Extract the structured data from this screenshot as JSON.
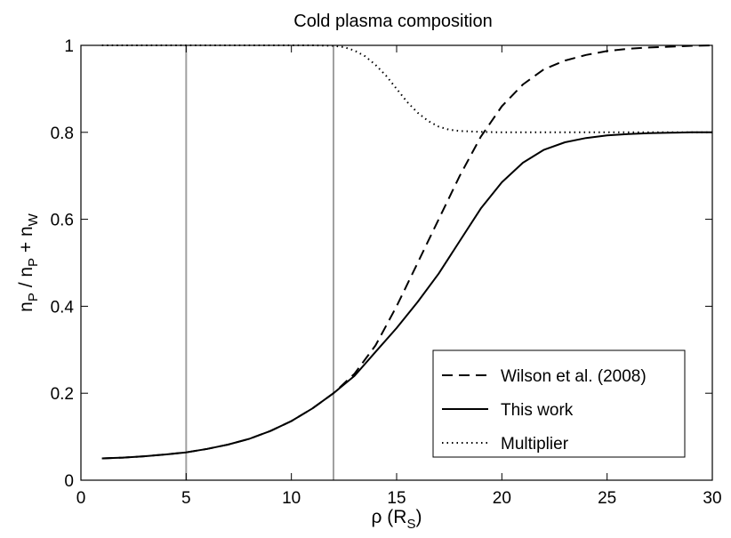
{
  "chart_data": {
    "type": "line",
    "title": "Cold plasma composition",
    "xlabel": {
      "main": "ρ (R",
      "sub": "S",
      "close": ")"
    },
    "ylabel": {
      "parts": [
        {
          "t": "n",
          "sub": false
        },
        {
          "t": "P",
          "sub": true
        },
        {
          "t": " / n",
          "sub": false
        },
        {
          "t": "P",
          "sub": true
        },
        {
          "t": " + n",
          "sub": false
        },
        {
          "t": "W",
          "sub": true
        }
      ]
    },
    "xlim": [
      0,
      30
    ],
    "ylim": [
      0,
      1
    ],
    "xticks": [
      0,
      5,
      10,
      15,
      20,
      25,
      30
    ],
    "yticks": [
      0,
      0.2,
      0.4,
      0.6,
      0.8,
      1
    ],
    "ytick_labels": [
      "0",
      "0.2",
      "0.4",
      "0.6",
      "0.8",
      "1"
    ],
    "grid": false,
    "legend_position": "bottom-right",
    "vertical_lines": [
      {
        "x": 5,
        "color": "#a0a0a0"
      },
      {
        "x": 12,
        "color": "#a0a0a0"
      }
    ],
    "series": [
      {
        "name": "Wilson et al. (2008)",
        "style": "dashed",
        "color": "#000000",
        "x": [
          1,
          2,
          3,
          4,
          5,
          6,
          7,
          8,
          9,
          10,
          11,
          12,
          13,
          14,
          15,
          16,
          17,
          18,
          19,
          20,
          21,
          22,
          23,
          24,
          25,
          26,
          27,
          28,
          29,
          30
        ],
        "y": [
          0.05,
          0.052,
          0.055,
          0.059,
          0.064,
          0.072,
          0.082,
          0.095,
          0.113,
          0.136,
          0.165,
          0.2,
          0.245,
          0.31,
          0.4,
          0.5,
          0.6,
          0.7,
          0.79,
          0.86,
          0.91,
          0.945,
          0.965,
          0.978,
          0.987,
          0.992,
          0.995,
          0.997,
          0.999,
          1.0
        ]
      },
      {
        "name": "This work",
        "style": "solid",
        "color": "#000000",
        "x": [
          1,
          2,
          3,
          4,
          5,
          6,
          7,
          8,
          9,
          10,
          11,
          12,
          13,
          14,
          15,
          16,
          17,
          18,
          19,
          20,
          21,
          22,
          23,
          24,
          25,
          26,
          27,
          28,
          29,
          30
        ],
        "y": [
          0.05,
          0.052,
          0.055,
          0.059,
          0.064,
          0.072,
          0.082,
          0.095,
          0.113,
          0.136,
          0.165,
          0.2,
          0.24,
          0.295,
          0.35,
          0.41,
          0.475,
          0.55,
          0.625,
          0.685,
          0.73,
          0.76,
          0.777,
          0.787,
          0.793,
          0.796,
          0.798,
          0.799,
          0.8,
          0.8
        ]
      },
      {
        "name": "Multiplier",
        "style": "dotted",
        "color": "#000000",
        "x": [
          1,
          2,
          3,
          4,
          5,
          6,
          7,
          8,
          9,
          10,
          11,
          12,
          12.5,
          13,
          13.5,
          14,
          14.5,
          15,
          15.5,
          16,
          16.5,
          17,
          17.5,
          18,
          19,
          20,
          22,
          25,
          30
        ],
        "y": [
          1,
          1,
          1,
          1,
          1,
          1,
          1,
          1,
          1,
          1,
          1,
          0.999,
          0.996,
          0.988,
          0.975,
          0.955,
          0.93,
          0.9,
          0.87,
          0.845,
          0.826,
          0.813,
          0.806,
          0.803,
          0.801,
          0.8,
          0.8,
          0.8,
          0.8
        ]
      }
    ]
  }
}
